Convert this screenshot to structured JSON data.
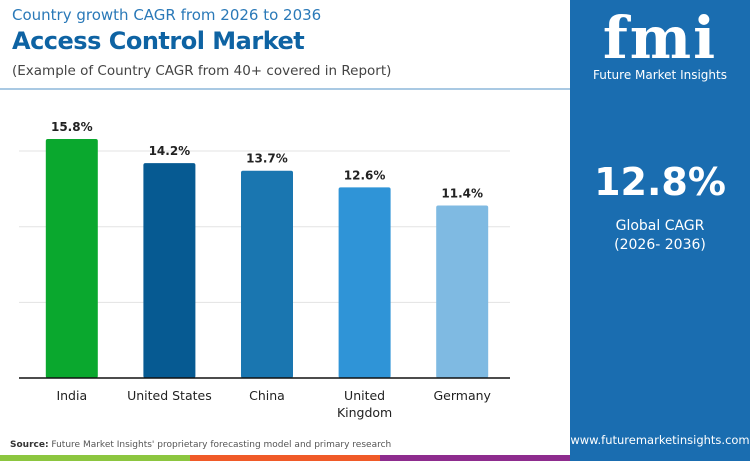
{
  "header": {
    "subtitle": "Country growth CAGR from 2026 to 2036",
    "title": "Access Control Market",
    "note": "(Example of Country CAGR from 40+ covered in Report)"
  },
  "chart_data": {
    "type": "bar",
    "categories": [
      "India",
      "United States",
      "China",
      "United Kingdom",
      "Germany"
    ],
    "values": [
      15.8,
      14.2,
      13.7,
      12.6,
      11.4
    ],
    "labels": [
      "15.8%",
      "14.2%",
      "13.7%",
      "12.6%",
      "11.4%"
    ],
    "colors": [
      "#0aa82e",
      "#065a92",
      "#1a76b0",
      "#2f94d7",
      "#7fbae2"
    ],
    "ylim": [
      0,
      17
    ],
    "grid": true,
    "grid_step": 5,
    "title": "",
    "xlabel": "",
    "ylabel": ""
  },
  "panel": {
    "logo_text": "fmi",
    "logo_sub": "Future Market Insights",
    "value": "12.8%",
    "label": "Global CAGR",
    "range": "(2026- 2036)",
    "url": "www.futuremarketinsights.com"
  },
  "footer": {
    "source_label": "Source:",
    "source_text": " Future Market Insights' proprietary forecasting model and primary research",
    "stripe_colors": [
      "#8cc63f",
      "#f05a28",
      "#8e2c8e"
    ]
  }
}
